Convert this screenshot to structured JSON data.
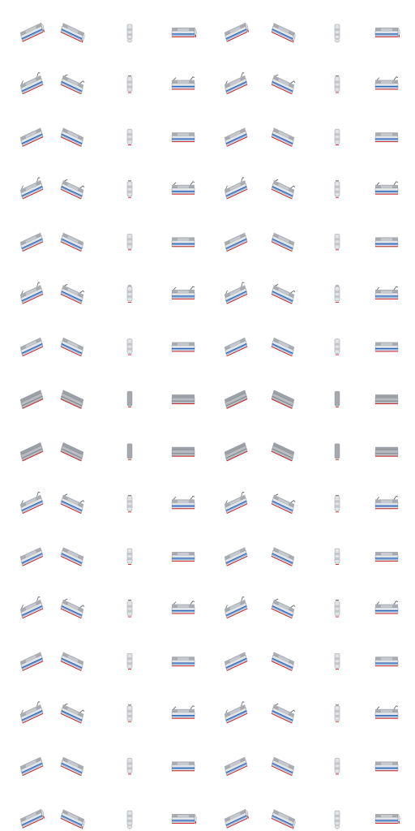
{
  "sheet": {
    "rows": 16,
    "cols": 8,
    "palette": {
      "roof": "#c8ccd0",
      "roof_dark": "#a9adb2",
      "body": "#e2e5e8",
      "shade": "#9aa0a6",
      "stripe": "#2c66b8",
      "stripe_light": "#6f9ad6",
      "red": "#d01e1e",
      "outline": "#7c8086"
    },
    "directions": [
      "diag-ne",
      "diag-nw",
      "vertical",
      "horizontal",
      "diag-ne",
      "diag-nw",
      "vertical",
      "horizontal"
    ],
    "row_variants": [
      "nose",
      "pantograph",
      "plain",
      "pantograph",
      "plain",
      "pantograph",
      "plain",
      "dark",
      "dark",
      "pantograph",
      "plain",
      "pantograph",
      "plain",
      "pantograph",
      "plain",
      "nose"
    ]
  }
}
